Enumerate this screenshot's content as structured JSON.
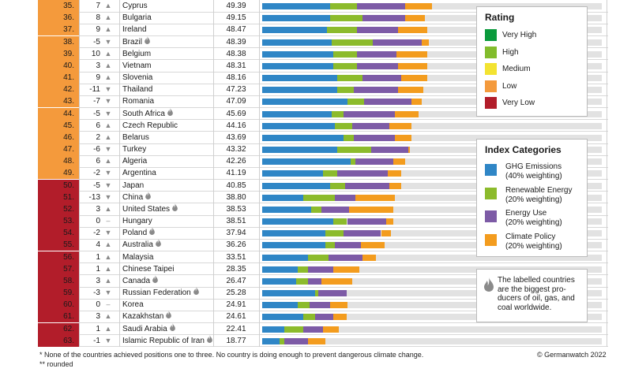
{
  "colors": {
    "very_high": "#0a9a3c",
    "high": "#82bc2c",
    "medium": "#f3e331",
    "low": "#f49a3c",
    "very_low": "#b21d2a",
    "ghg": "#2f86c6",
    "renewable": "#8cbb2c",
    "energy": "#7d5ba6",
    "policy": "#f39c1e",
    "track": "#e2e2e2"
  },
  "chart_data": {
    "type": "bar",
    "stacked": true,
    "orientation": "horizontal",
    "xlim": [
      0,
      100
    ],
    "series": [
      {
        "name": "GHG Emissions",
        "key": "ghg"
      },
      {
        "name": "Renewable Energy",
        "key": "renewable"
      },
      {
        "name": "Energy Use",
        "key": "energy"
      },
      {
        "name": "Climate Policy",
        "key": "policy"
      }
    ],
    "rows": [
      {
        "rank": "35.",
        "change": "7",
        "dir": "up",
        "country": "Cyprus",
        "flame": false,
        "score": "49.39",
        "rating": "low",
        "ghg": 20.0,
        "renewable": 8.0,
        "energy": 14.0,
        "policy": 8.0
      },
      {
        "rank": "36.",
        "change": "8",
        "dir": "up",
        "country": "Bulgaria",
        "flame": false,
        "score": "49.15",
        "rating": "low",
        "ghg": 20.0,
        "renewable": 9.5,
        "energy": 12.5,
        "policy": 6.0
      },
      {
        "rank": "37.",
        "change": "9",
        "dir": "up",
        "country": "Ireland",
        "flame": false,
        "score": "48.47",
        "rating": "low",
        "ghg": 19.0,
        "renewable": 9.0,
        "energy": 12.0,
        "policy": 8.5
      },
      {
        "rank": "38.",
        "change": "-5",
        "dir": "down",
        "country": "Brazil",
        "flame": true,
        "score": "48.39",
        "rating": "low",
        "ghg": 20.5,
        "renewable": 12.0,
        "energy": 14.5,
        "policy": 2.0
      },
      {
        "rank": "39.",
        "change": "10",
        "dir": "up",
        "country": "Belgium",
        "flame": false,
        "score": "48.38",
        "rating": "low",
        "ghg": 21.0,
        "renewable": 7.0,
        "energy": 11.5,
        "policy": 9.0
      },
      {
        "rank": "40.",
        "change": "3",
        "dir": "up",
        "country": "Vietnam",
        "flame": false,
        "score": "48.31",
        "rating": "low",
        "ghg": 21.0,
        "renewable": 7.0,
        "energy": 12.0,
        "policy": 8.5
      },
      {
        "rank": "41.",
        "change": "9",
        "dir": "up",
        "country": "Slovenia",
        "flame": false,
        "score": "48.16",
        "rating": "low",
        "ghg": 22.0,
        "renewable": 7.5,
        "energy": 11.5,
        "policy": 7.5
      },
      {
        "rank": "42.",
        "change": "-11",
        "dir": "down",
        "country": "Thailand",
        "flame": false,
        "score": "47.23",
        "rating": "low",
        "ghg": 22.0,
        "renewable": 5.0,
        "energy": 13.0,
        "policy": 7.5
      },
      {
        "rank": "43.",
        "change": "-7",
        "dir": "down",
        "country": "Romania",
        "flame": false,
        "score": "47.09",
        "rating": "low",
        "ghg": 25.0,
        "renewable": 5.0,
        "energy": 14.0,
        "policy": 3.0
      },
      {
        "rank": "44.",
        "change": "-5",
        "dir": "down",
        "country": "South Africa",
        "flame": true,
        "score": "45.69",
        "rating": "low",
        "ghg": 20.5,
        "renewable": 3.5,
        "energy": 15.0,
        "policy": 7.0
      },
      {
        "rank": "45.",
        "change": "6",
        "dir": "up",
        "country": "Czech Republic",
        "flame": false,
        "score": "44.16",
        "rating": "low",
        "ghg": 21.5,
        "renewable": 5.0,
        "energy": 11.0,
        "policy": 6.5
      },
      {
        "rank": "46.",
        "change": "2",
        "dir": "up",
        "country": "Belarus",
        "flame": false,
        "score": "43.69",
        "rating": "low",
        "ghg": 24.0,
        "renewable": 3.0,
        "energy": 12.0,
        "policy": 5.0
      },
      {
        "rank": "47.",
        "change": "-6",
        "dir": "down",
        "country": "Turkey",
        "flame": false,
        "score": "43.32",
        "rating": "low",
        "ghg": 22.0,
        "renewable": 10.0,
        "energy": 11.0,
        "policy": 0.5
      },
      {
        "rank": "48.",
        "change": "6",
        "dir": "up",
        "country": "Algeria",
        "flame": false,
        "score": "42.26",
        "rating": "low",
        "ghg": 26.0,
        "renewable": 1.5,
        "energy": 11.0,
        "policy": 3.5
      },
      {
        "rank": "49.",
        "change": "-2",
        "dir": "down",
        "country": "Argentina",
        "flame": false,
        "score": "41.19",
        "rating": "low",
        "ghg": 18.0,
        "renewable": 4.0,
        "energy": 15.0,
        "policy": 4.0
      },
      {
        "rank": "50.",
        "change": "-5",
        "dir": "down",
        "country": "Japan",
        "flame": false,
        "score": "40.85",
        "rating": "very_low",
        "ghg": 20.0,
        "renewable": 4.5,
        "energy": 13.0,
        "policy": 3.5
      },
      {
        "rank": "51.",
        "change": "-13",
        "dir": "down",
        "country": "China",
        "flame": true,
        "score": "38.80",
        "rating": "very_low",
        "ghg": 12.0,
        "renewable": 9.5,
        "energy": 6.0,
        "policy": 11.5
      },
      {
        "rank": "52.",
        "change": "3",
        "dir": "up",
        "country": "United States",
        "flame": true,
        "score": "38.53",
        "rating": "very_low",
        "ghg": 14.5,
        "renewable": 3.0,
        "energy": 8.0,
        "policy": 13.0
      },
      {
        "rank": "53.",
        "change": "0",
        "dir": "none",
        "country": "Hungary",
        "flame": false,
        "score": "38.51",
        "rating": "very_low",
        "ghg": 21.0,
        "renewable": 4.0,
        "energy": 11.5,
        "policy": 2.0
      },
      {
        "rank": "54.",
        "change": "-2",
        "dir": "down",
        "country": "Poland",
        "flame": true,
        "score": "37.94",
        "rating": "very_low",
        "ghg": 18.5,
        "renewable": 5.5,
        "energy": 11.0,
        "policy": 3.0
      },
      {
        "rank": "55.",
        "change": "4",
        "dir": "up",
        "country": "Australia",
        "flame": true,
        "score": "36.26",
        "rating": "very_low",
        "ghg": 18.5,
        "renewable": 3.0,
        "energy": 7.5,
        "policy": 7.0
      },
      {
        "rank": "56.",
        "change": "1",
        "dir": "up",
        "country": "Malaysia",
        "flame": false,
        "score": "33.51",
        "rating": "very_low",
        "ghg": 13.5,
        "renewable": 6.0,
        "energy": 10.0,
        "policy": 4.0
      },
      {
        "rank": "57.",
        "change": "1",
        "dir": "up",
        "country": "Chinese Taipei",
        "flame": false,
        "score": "28.35",
        "rating": "very_low",
        "ghg": 10.5,
        "renewable": 3.0,
        "energy": 7.5,
        "policy": 7.5
      },
      {
        "rank": "58.",
        "change": "3",
        "dir": "up",
        "country": "Canada",
        "flame": true,
        "score": "26.47",
        "rating": "very_low",
        "ghg": 10.0,
        "renewable": 3.5,
        "energy": 4.0,
        "policy": 9.0
      },
      {
        "rank": "59.",
        "change": "-3",
        "dir": "down",
        "country": "Russian Federation",
        "flame": true,
        "score": "25.28",
        "rating": "very_low",
        "ghg": 15.5,
        "renewable": 1.0,
        "energy": 8.5,
        "policy": 0.0
      },
      {
        "rank": "60.",
        "change": "0",
        "dir": "none",
        "country": "Korea",
        "flame": false,
        "score": "24.91",
        "rating": "very_low",
        "ghg": 10.5,
        "renewable": 3.5,
        "energy": 6.0,
        "policy": 5.0
      },
      {
        "rank": "61.",
        "change": "3",
        "dir": "up",
        "country": "Kazakhstan",
        "flame": true,
        "score": "24.61",
        "rating": "very_low",
        "ghg": 12.0,
        "renewable": 3.5,
        "energy": 5.5,
        "policy": 4.0
      },
      {
        "rank": "62.",
        "change": "1",
        "dir": "up",
        "country": "Saudi Arabia",
        "flame": true,
        "score": "22.41",
        "rating": "very_low",
        "ghg": 6.5,
        "renewable": 5.5,
        "energy": 6.0,
        "policy": 4.5
      },
      {
        "rank": "63.",
        "change": "-1",
        "dir": "down",
        "country": "Islamic Republic of Iran",
        "flame": true,
        "score": "18.77",
        "rating": "very_low",
        "ghg": 5.0,
        "renewable": 1.5,
        "energy": 7.0,
        "policy": 5.0
      }
    ]
  },
  "legend_rating": {
    "title": "Rating",
    "items": [
      {
        "label": "Very High",
        "color_key": "very_high"
      },
      {
        "label": "High",
        "color_key": "high"
      },
      {
        "label": "Medium",
        "color_key": "medium"
      },
      {
        "label": "Low",
        "color_key": "low"
      },
      {
        "label": "Very Low",
        "color_key": "very_low"
      }
    ]
  },
  "legend_categories": {
    "title": "Index Categories",
    "items": [
      {
        "label": "GHG Emissions",
        "sub": "(40% weighting)",
        "color_key": "ghg"
      },
      {
        "label": "Renewable Energy",
        "sub": "(20% weighting)",
        "color_key": "renewable"
      },
      {
        "label": "Energy Use",
        "sub": "(20% weighting)",
        "color_key": "energy"
      },
      {
        "label": "Climate Policy",
        "sub": "(20% weighting)",
        "color_key": "policy"
      }
    ]
  },
  "note": {
    "icon": "flame-icon",
    "lines": [
      "The labelled countries",
      "are the biggest pro-",
      "ducers of oil, gas, and",
      "coal worldwide."
    ]
  },
  "footnotes": {
    "line1": "* None of the countries achieved positions one to three. No country is doing enough to prevent dangerous climate change.",
    "line2": "** rounded",
    "credit": "© Germanwatch 2022"
  }
}
